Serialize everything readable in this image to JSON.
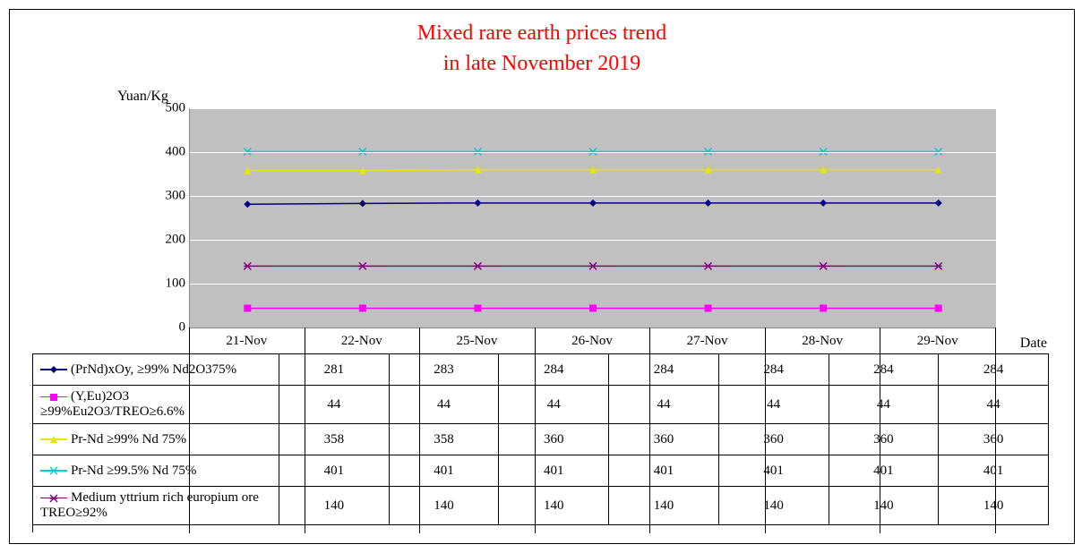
{
  "title_line1": "Mixed rare earth prices trend",
  "title_line2": "in late November 2019",
  "ylabel": "Yuan/Kg",
  "xlabel": "Date",
  "chart": {
    "type": "line",
    "background_color": "#c0c0c0",
    "grid_color": "#ffffff",
    "ylim": [
      0,
      500
    ],
    "ytick_step": 100,
    "yticks": [
      0,
      100,
      200,
      300,
      400,
      500
    ],
    "categories": [
      "21-Nov",
      "22-Nov",
      "25-Nov",
      "26-Nov",
      "27-Nov",
      "28-Nov",
      "29-Nov"
    ],
    "series": [
      {
        "label": "(PrNd)xOy, ≥99%    Nd2O375%",
        "color": "#000080",
        "marker": "diamond",
        "values": [
          281,
          283,
          284,
          284,
          284,
          284,
          284
        ]
      },
      {
        "label": "(Y,Eu)2O3 ≥99%Eu2O3/TREO≥6.6%",
        "color": "#ff00ff",
        "marker": "square",
        "values": [
          44,
          44,
          44,
          44,
          44,
          44,
          44
        ]
      },
      {
        "label": "Pr-Nd ≥99%  Nd 75%",
        "color": "#e6e600",
        "marker": "triangle",
        "values": [
          358,
          358,
          360,
          360,
          360,
          360,
          360
        ]
      },
      {
        "label": "Pr-Nd ≥99.5%  Nd  75%",
        "color": "#00cccc",
        "marker": "x",
        "values": [
          401,
          401,
          401,
          401,
          401,
          401,
          401
        ]
      },
      {
        "label": "Medium yttrium rich europium ore TREO≥92%",
        "color": "#800080",
        "marker": "star",
        "values": [
          140,
          140,
          140,
          140,
          140,
          140,
          140
        ]
      }
    ]
  }
}
